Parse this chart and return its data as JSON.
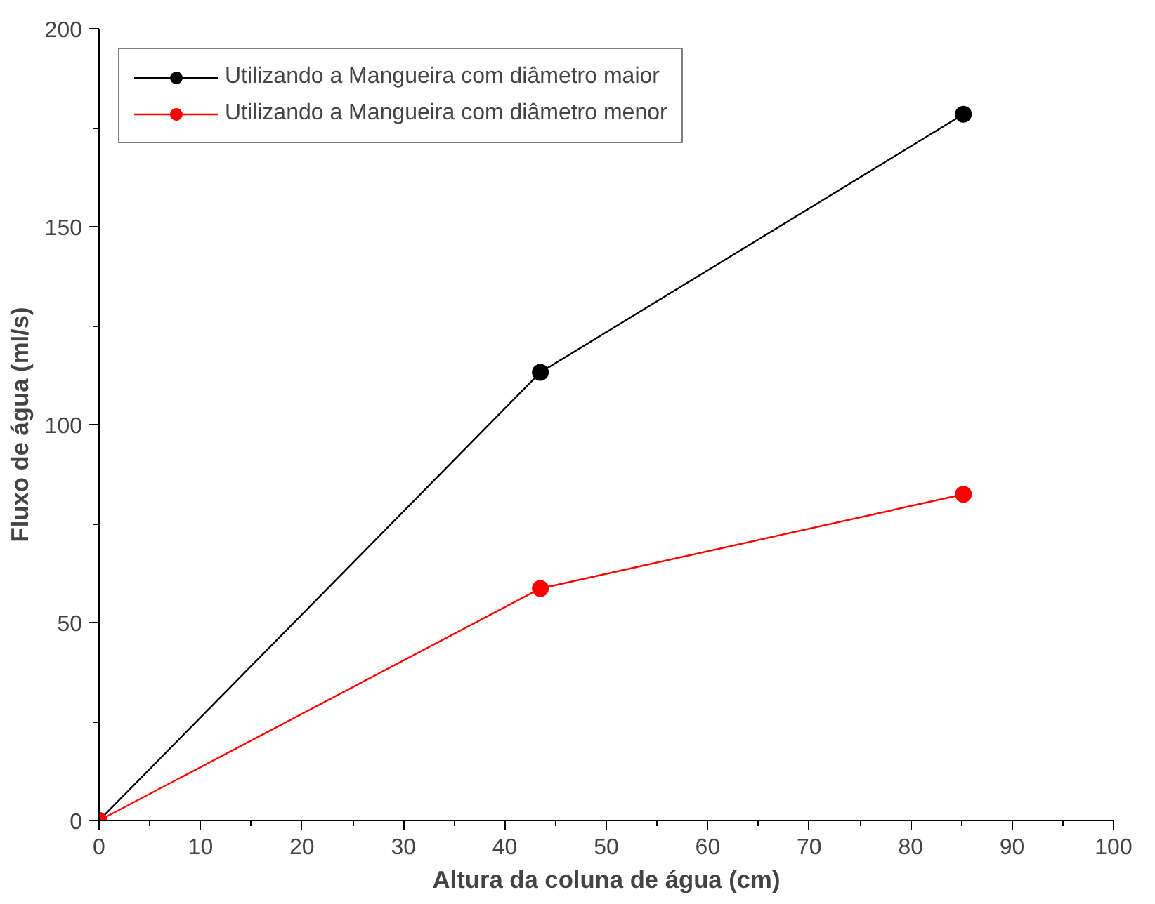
{
  "chart_data": {
    "type": "line",
    "xlabel": "Altura da coluna de água (cm)",
    "ylabel": "Fluxo de água (ml/s)",
    "x": [
      0,
      43.5,
      85.2
    ],
    "series": [
      {
        "name": "Utilizando a Mangueira com diâmetro maior",
        "color": "#000000",
        "values": [
          0,
          113.2,
          178.4
        ]
      },
      {
        "name": "Utilizando a Mangueira com diâmetro menor",
        "color": "#ff0000",
        "values": [
          0,
          58.6,
          82.4
        ]
      }
    ],
    "xlim": [
      0,
      100
    ],
    "ylim": [
      0,
      200
    ],
    "xticks": [
      0,
      10,
      20,
      30,
      40,
      50,
      60,
      70,
      80,
      90,
      100
    ],
    "yticks": [
      0,
      50,
      100,
      150,
      200
    ],
    "grid": false,
    "legend": "top left",
    "marker": "circle",
    "line_style": "solid"
  }
}
